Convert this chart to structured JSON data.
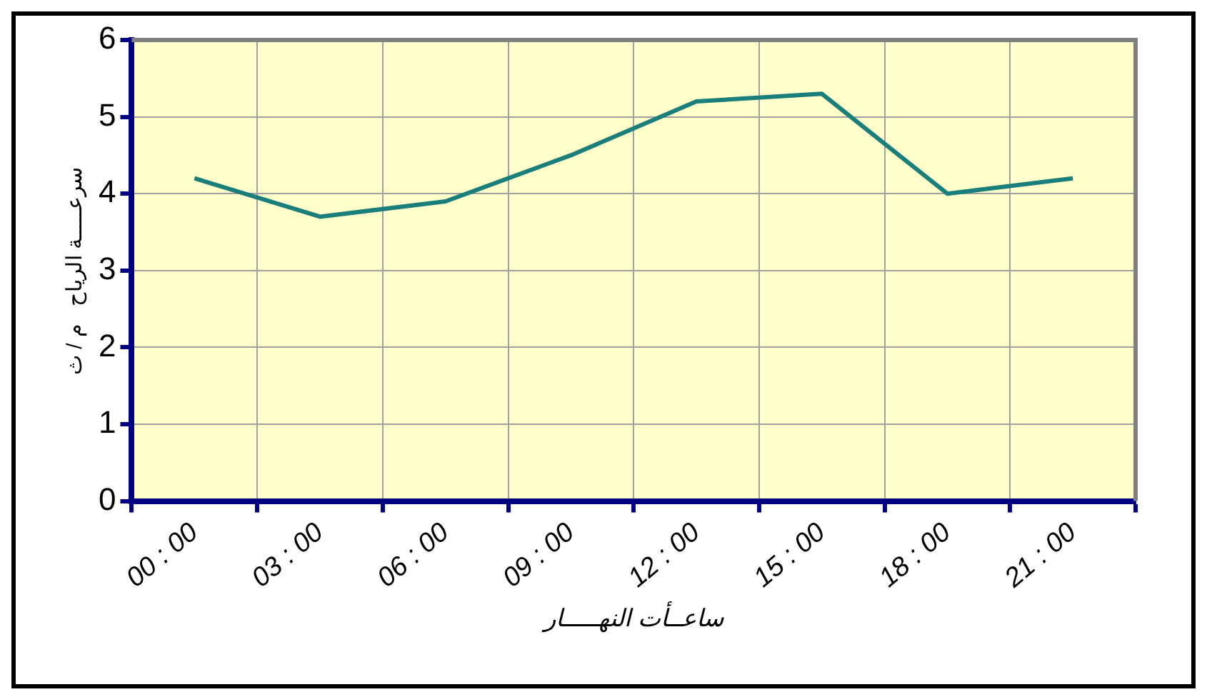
{
  "chart_data": {
    "type": "line",
    "categories": [
      "00 : 00",
      "03 : 00",
      "06 : 00",
      "09 : 00",
      "12 : 00",
      "15 : 00",
      "18 : 00",
      "21 : 00"
    ],
    "series": [
      {
        "color": "#1a7f7a",
        "values": [
          4.2,
          3.7,
          3.9,
          4.5,
          5.2,
          5.3,
          4.0,
          4.2
        ]
      }
    ],
    "xlabel": "ساعــأت النهـــــار",
    "ylabel": "سرعـــــة الرياح   م / ث",
    "ylim": [
      0,
      6
    ],
    "yticks": [
      0,
      1,
      2,
      3,
      4,
      5,
      6
    ],
    "grid": true,
    "legend": false,
    "marker": "none",
    "line_style": "solid"
  }
}
